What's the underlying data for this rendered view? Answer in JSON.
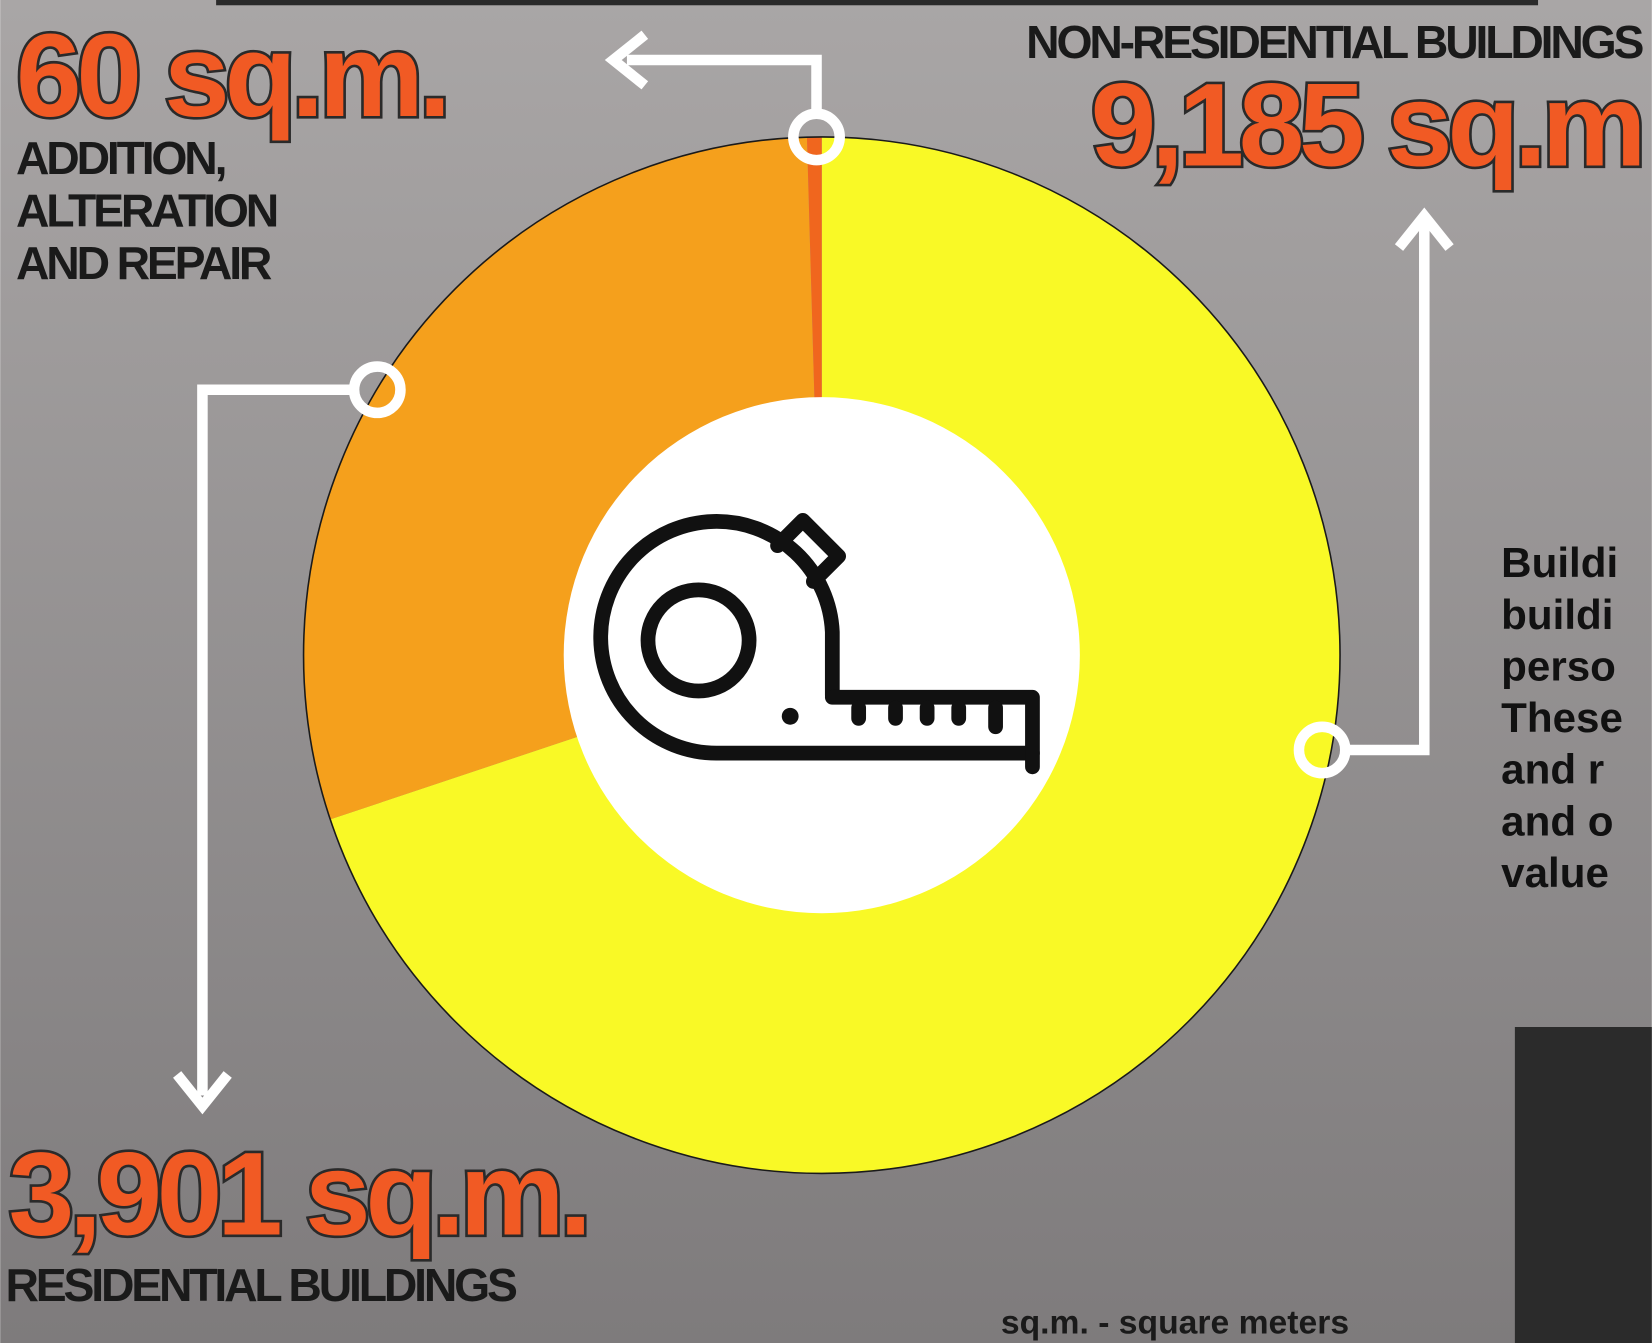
{
  "chart_data": {
    "type": "donut",
    "categories": [
      "NON-RESIDENTIAL BUILDINGS",
      "RESIDENTIAL BUILDINGS",
      "ADDITION, ALTERATION AND REPAIR"
    ],
    "values": [
      9185,
      3901,
      60
    ],
    "value_labels": [
      "9,185 sq.m",
      "3,901 sq.m.",
      "60 sq.m."
    ],
    "colors": [
      "#f9f926",
      "#f5a01c",
      "#f0661e"
    ],
    "footnote": "sq.m. - square meters",
    "side_text": [
      "Buildi",
      "buildi",
      "perso",
      "These",
      "and r",
      "and o",
      "value"
    ]
  }
}
